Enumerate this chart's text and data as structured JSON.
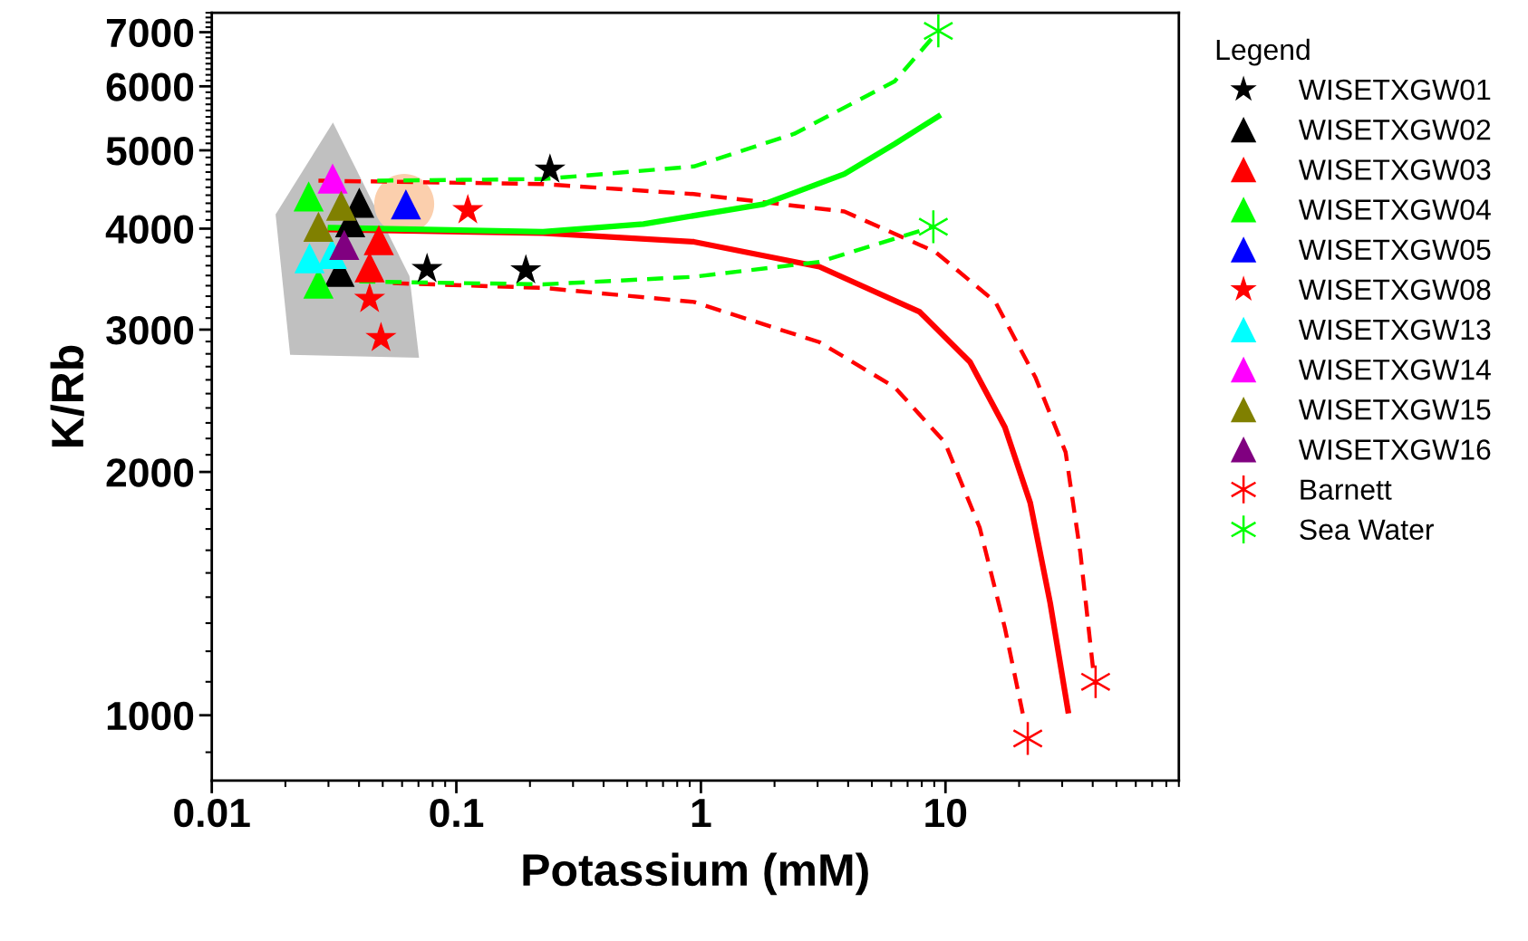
{
  "chart_data": {
    "type": "scatter",
    "xlabel": "Potassium (mM)",
    "ylabel": "K/Rb",
    "log": "xy",
    "xlim": [
      0.01,
      90
    ],
    "ylim": [
      830,
      7400
    ],
    "xticks": [
      0.01,
      0.1,
      1,
      10
    ],
    "yticks": [
      1000,
      2000,
      3000,
      4000,
      5000,
      6000,
      7000
    ],
    "legend": "right",
    "legend_title": "Legend",
    "grid": false,
    "series": [
      {
        "name": "WISETXGW01",
        "color": "#000000",
        "marker": "star",
        "x": [
          0.0759,
          0.1924,
          0.2415
        ],
        "values": [
          3565,
          3552,
          4733
        ]
      },
      {
        "name": "WISETXGW02",
        "color": "#000000",
        "marker": "triangle",
        "x": [
          0.0401,
          0.0368,
          0.0333
        ],
        "values": [
          4306,
          4074,
          3537
        ]
      },
      {
        "name": "WISETXGW03",
        "color": "#ff0000",
        "marker": "triangle",
        "x": [
          0.0482,
          0.0442
        ],
        "values": [
          3871,
          3583
        ]
      },
      {
        "name": "WISETXGW04",
        "color": "#00ff00",
        "marker": "triangle",
        "x": [
          0.0249,
          0.0273
        ],
        "values": [
          4385,
          3420
        ]
      },
      {
        "name": "WISETXGW05",
        "color": "#0000ff",
        "marker": "triangle",
        "x": [
          0.0622
        ],
        "values": [
          4286
        ]
      },
      {
        "name": "WISETXGW08",
        "color": "#ff0000",
        "marker": "star",
        "x": [
          0.1114,
          0.0442,
          0.0492
        ],
        "values": [
          4216,
          3274,
          2929
        ]
      },
      {
        "name": "WISETXGW13",
        "color": "#00ffff",
        "marker": "triangle",
        "x": [
          0.0251,
          0.031
        ],
        "values": [
          3677,
          3722
        ]
      },
      {
        "name": "WISETXGW14",
        "color": "#ff00ff",
        "marker": "triangle",
        "x": [
          0.0312
        ],
        "values": [
          4613
        ]
      },
      {
        "name": "WISETXGW15",
        "color": "#808000",
        "marker": "triangle",
        "x": [
          0.0338,
          0.0273
        ],
        "values": [
          4270,
          4022
        ]
      },
      {
        "name": "WISETXGW16",
        "color": "#800080",
        "marker": "triangle",
        "x": [
          0.0348
        ],
        "values": [
          3819
        ]
      },
      {
        "name": "Barnett",
        "color": "#ff0000",
        "marker": "cross",
        "x": [
          21.7,
          41.1
        ],
        "values": [
          936,
          1100
        ]
      },
      {
        "name": "Sea Water",
        "color": "#00ff00",
        "marker": "cross",
        "x": [
          9.35,
          8.92
        ],
        "values": [
          7026,
          4022
        ]
      },
      {
        "type": "line",
        "color": "#ff0000",
        "line_style": "solid",
        "x": [
          0.0306,
          0.226,
          0.935,
          3.05,
          7.85,
          12.6,
          17.5,
          22.2,
          26.8,
          31.7
        ],
        "values": [
          3990,
          3950,
          3853,
          3589,
          3155,
          2735,
          2271,
          1833,
          1377,
          1013
        ]
      },
      {
        "type": "line",
        "color": "#ff0000",
        "line_style": "dashed",
        "x": [
          0.0273,
          0.226,
          0.935,
          3.86,
          9.08,
          16.0,
          23.3,
          31.0,
          35.6,
          40.1
        ],
        "values": [
          4586,
          4542,
          4414,
          4200,
          3745,
          3246,
          2620,
          2115,
          1589,
          1144
        ]
      },
      {
        "type": "line",
        "color": "#ff0000",
        "line_style": "dashed",
        "x": [
          0.055,
          0.226,
          0.935,
          3.05,
          6.2,
          9.94,
          13.8,
          17.5,
          20.7
        ],
        "values": [
          3425,
          3379,
          3246,
          2895,
          2546,
          2176,
          1707,
          1282,
          1005
        ]
      },
      {
        "type": "line",
        "color": "#00ff00",
        "line_style": "solid",
        "x": [
          0.0306,
          0.226,
          0.582,
          1.81,
          3.86,
          6.2,
          9.35
        ],
        "values": [
          4010,
          3965,
          4053,
          4290,
          4674,
          5093,
          5508
        ]
      },
      {
        "type": "line",
        "color": "#00ff00",
        "line_style": "dashed",
        "x": [
          0.0475,
          0.226,
          0.935,
          2.41,
          6.2,
          9.35
        ],
        "values": [
          4586,
          4607,
          4775,
          5241,
          6087,
          7026
        ]
      },
      {
        "type": "line",
        "color": "#00ff00",
        "line_style": "dashed",
        "x": [
          0.0401,
          0.226,
          0.935,
          3.05,
          8.92
        ],
        "values": [
          3441,
          3413,
          3487,
          3638,
          4022
        ]
      }
    ]
  }
}
